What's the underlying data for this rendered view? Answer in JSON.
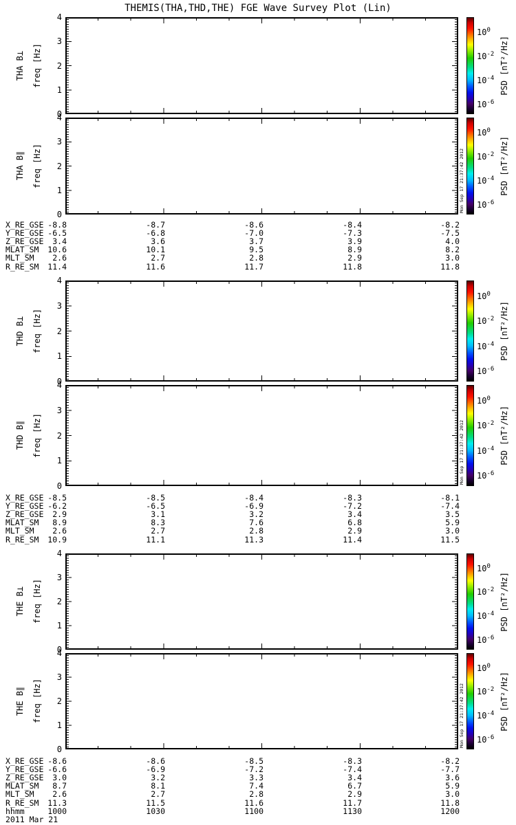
{
  "title": "THEMIS(THA,THD,THE) FGE Wave Survey Plot (Lin)",
  "timestamp": "Mon Sep 17 21:37:42 2012",
  "chart_data": {
    "type": "heatmap",
    "subtype": "wave-survey-spectrogram",
    "title": "THEMIS(THA,THD,THE) FGE Wave Survey Plot (Lin)",
    "panels_contain_data": false,
    "note": "Six stacked spectrogram panels (B-perp and B-parallel for probes THA, THD, THE); panels are blank/white with no spectral power plotted",
    "x_axis": {
      "label": "hhmm",
      "ticks": [
        "1000",
        "1030",
        "1100",
        "1130",
        "1200"
      ],
      "minor_tick_minutes": 10,
      "date": "2011 Mar 21"
    },
    "y_axis": {
      "label": "freq [Hz]",
      "range": [
        0,
        4
      ],
      "ticks": [
        "0",
        "1",
        "2",
        "3",
        "4"
      ]
    },
    "colorbar": {
      "label": "PSD [nT²/Hz]",
      "scale": "log",
      "tick_base": "10",
      "tick_exponents": [
        "0",
        "-2",
        "-4",
        "-6"
      ],
      "gradient_top_to_bottom": [
        "#5a0000",
        "#cc0000",
        "#ff1100",
        "#ff7700",
        "#ffcc00",
        "#ffff00",
        "#99ee00",
        "#22cc00",
        "#00dd88",
        "#00eeee",
        "#00bbff",
        "#0055ff",
        "#0011ee",
        "#2200bb",
        "#440066",
        "#1a0033",
        "#000000"
      ]
    },
    "groups": [
      {
        "probe": "THA",
        "panel_labels": [
          "THA B⊥",
          "THA B∥"
        ],
        "ephemeris": [
          {
            "label": "X_RE_GSE",
            "values": [
              "-8.8",
              "-8.7",
              "-8.6",
              "-8.4",
              "-8.2"
            ]
          },
          {
            "label": "Y_RE_GSE",
            "values": [
              "-6.5",
              "-6.8",
              "-7.0",
              "-7.3",
              "-7.5"
            ]
          },
          {
            "label": "Z_RE_GSE",
            "values": [
              "3.4",
              "3.6",
              "3.7",
              "3.9",
              "4.0"
            ]
          },
          {
            "label": "MLAT_SM",
            "values": [
              "10.6",
              "10.1",
              "9.5",
              "8.9",
              "8.2"
            ]
          },
          {
            "label": "MLT_SM",
            "values": [
              "2.6",
              "2.7",
              "2.8",
              "2.9",
              "3.0"
            ]
          },
          {
            "label": "R_RE_SM",
            "values": [
              "11.4",
              "11.6",
              "11.7",
              "11.8",
              "11.8"
            ]
          }
        ]
      },
      {
        "probe": "THD",
        "panel_labels": [
          "THD B⊥",
          "THD B∥"
        ],
        "ephemeris": [
          {
            "label": "X_RE_GSE",
            "values": [
              "-8.5",
              "-8.5",
              "-8.4",
              "-8.3",
              "-8.1"
            ]
          },
          {
            "label": "Y_RE_GSE",
            "values": [
              "-6.2",
              "-6.5",
              "-6.9",
              "-7.2",
              "-7.4"
            ]
          },
          {
            "label": "Z_RE_GSE",
            "values": [
              "2.9",
              "3.1",
              "3.2",
              "3.4",
              "3.5"
            ]
          },
          {
            "label": "MLAT_SM",
            "values": [
              "8.9",
              "8.3",
              "7.6",
              "6.8",
              "5.9"
            ]
          },
          {
            "label": "MLT_SM",
            "values": [
              "2.6",
              "2.7",
              "2.8",
              "2.9",
              "3.0"
            ]
          },
          {
            "label": "R_RE_SM",
            "values": [
              "10.9",
              "11.1",
              "11.3",
              "11.4",
              "11.5"
            ]
          }
        ]
      },
      {
        "probe": "THE",
        "panel_labels": [
          "THE B⊥",
          "THE B∥"
        ],
        "ephemeris": [
          {
            "label": "X_RE_GSE",
            "values": [
              "-8.6",
              "-8.6",
              "-8.5",
              "-8.3",
              "-8.2"
            ]
          },
          {
            "label": "Y_RE_GSE",
            "values": [
              "-6.6",
              "-6.9",
              "-7.2",
              "-7.4",
              "-7.7"
            ]
          },
          {
            "label": "Z_RE_GSE",
            "values": [
              "3.0",
              "3.2",
              "3.3",
              "3.4",
              "3.6"
            ]
          },
          {
            "label": "MLAT_SM",
            "values": [
              "8.7",
              "8.1",
              "7.4",
              "6.7",
              "5.9"
            ]
          },
          {
            "label": "MLT_SM",
            "values": [
              "2.6",
              "2.7",
              "2.8",
              "2.9",
              "3.0"
            ]
          },
          {
            "label": "R_RE_SM",
            "values": [
              "11.3",
              "11.5",
              "11.6",
              "11.7",
              "11.8"
            ]
          }
        ],
        "time_row": {
          "label": "hhmm",
          "values": [
            "1000",
            "1030",
            "1100",
            "1130",
            "1200"
          ]
        },
        "date": "2011 Mar 21"
      }
    ]
  }
}
